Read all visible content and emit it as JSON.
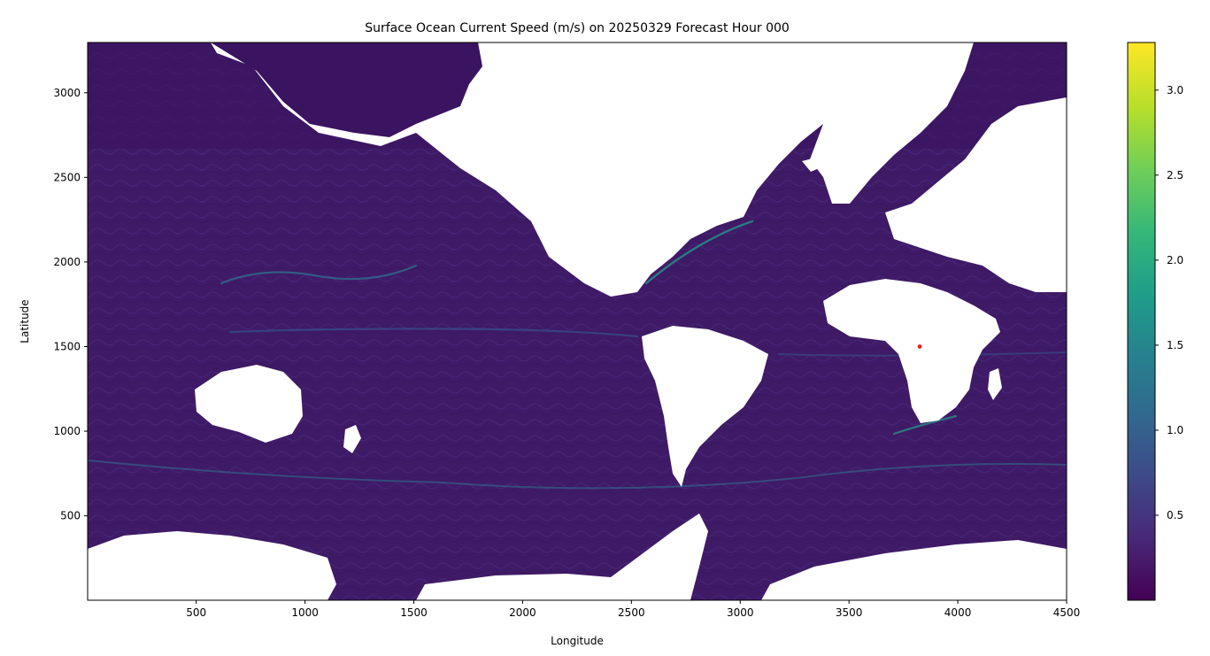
{
  "chart_data": {
    "type": "heatmap",
    "title": "Surface Ocean Current Speed (m/s) on 20250329 Forecast Hour 000",
    "xlabel": "Longitude",
    "ylabel": "Latitude",
    "xlim": [
      1,
      4500
    ],
    "ylim": [
      1,
      3297
    ],
    "x_ticks": [
      500,
      1000,
      1500,
      2000,
      2500,
      3000,
      3500,
      4000,
      4500
    ],
    "y_ticks": [
      500,
      1000,
      1500,
      2000,
      2500,
      3000
    ],
    "colormap": "viridis",
    "colorbar": {
      "range": [
        0.0,
        3.28
      ],
      "ticks": [
        0.5,
        1.0,
        1.5,
        2.0,
        2.5,
        3.0
      ],
      "tick_labels": [
        "0.5",
        "1.0",
        "1.5",
        "2.0",
        "2.5",
        "3.0"
      ],
      "colors": [
        "#440154",
        "#482878",
        "#3e4989",
        "#31688e",
        "#26828e",
        "#1f9e89",
        "#35b779",
        "#6ece58",
        "#b5de2b",
        "#fde725"
      ]
    },
    "land_color": "#ffffff",
    "dominant_ocean_color": "#3f1a66",
    "marker": {
      "x": 3825,
      "y": 1500,
      "color": "#e4201b"
    },
    "grid": false
  }
}
